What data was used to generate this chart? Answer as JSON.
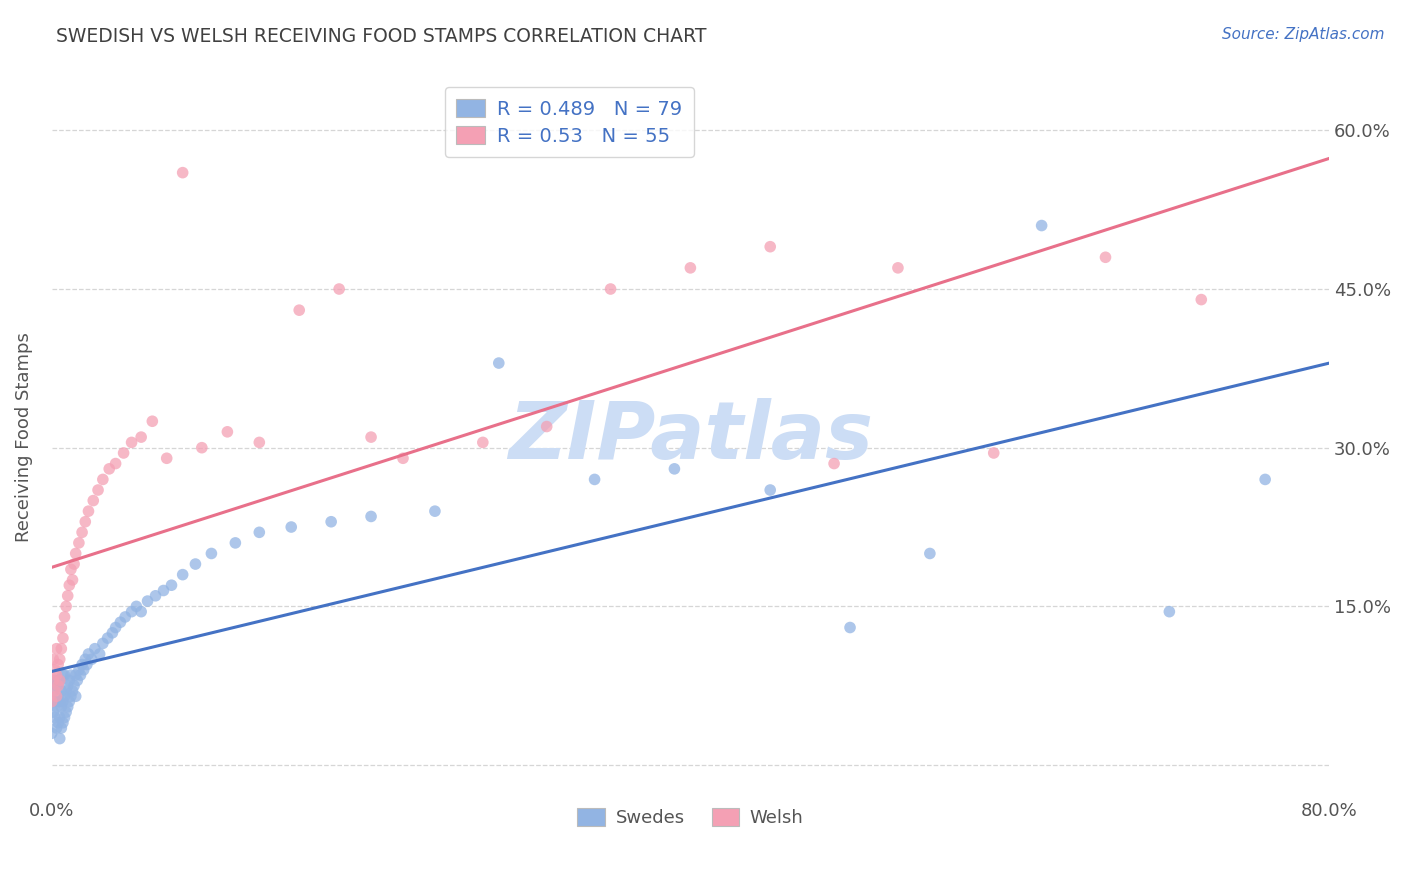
{
  "title": "SWEDISH VS WELSH RECEIVING FOOD STAMPS CORRELATION CHART",
  "source": "Source: ZipAtlas.com",
  "ylabel": "Receiving Food Stamps",
  "xlim": [
    0.0,
    0.8
  ],
  "ylim": [
    -0.03,
    0.65
  ],
  "ytick_positions": [
    0.0,
    0.15,
    0.3,
    0.45,
    0.6
  ],
  "ytick_labels_right": [
    "",
    "15.0%",
    "30.0%",
    "45.0%",
    "60.0%"
  ],
  "swedes_R": 0.489,
  "swedes_N": 79,
  "welsh_R": 0.53,
  "welsh_N": 55,
  "swedes_color": "#92b4e3",
  "welsh_color": "#f4a0b4",
  "swedes_line_color": "#4472c4",
  "welsh_line_color": "#e8708a",
  "title_color": "#404040",
  "label_color": "#4472c4",
  "watermark_color": "#ccddf5",
  "background_color": "#ffffff",
  "grid_color": "#cccccc",
  "swedes_x": [
    0.0,
    0.001,
    0.001,
    0.002,
    0.002,
    0.002,
    0.003,
    0.003,
    0.003,
    0.004,
    0.004,
    0.004,
    0.005,
    0.005,
    0.005,
    0.005,
    0.006,
    0.006,
    0.006,
    0.007,
    0.007,
    0.007,
    0.008,
    0.008,
    0.008,
    0.009,
    0.009,
    0.01,
    0.01,
    0.011,
    0.011,
    0.012,
    0.012,
    0.013,
    0.014,
    0.015,
    0.015,
    0.016,
    0.017,
    0.018,
    0.019,
    0.02,
    0.021,
    0.022,
    0.023,
    0.025,
    0.027,
    0.03,
    0.032,
    0.035,
    0.038,
    0.04,
    0.043,
    0.046,
    0.05,
    0.053,
    0.056,
    0.06,
    0.065,
    0.07,
    0.075,
    0.082,
    0.09,
    0.1,
    0.115,
    0.13,
    0.15,
    0.175,
    0.2,
    0.24,
    0.28,
    0.34,
    0.39,
    0.45,
    0.5,
    0.55,
    0.62,
    0.7,
    0.76
  ],
  "swedes_y": [
    0.03,
    0.05,
    0.07,
    0.045,
    0.06,
    0.08,
    0.035,
    0.055,
    0.075,
    0.04,
    0.06,
    0.08,
    0.025,
    0.045,
    0.06,
    0.08,
    0.035,
    0.055,
    0.07,
    0.04,
    0.06,
    0.085,
    0.045,
    0.065,
    0.085,
    0.05,
    0.07,
    0.055,
    0.075,
    0.06,
    0.08,
    0.065,
    0.085,
    0.07,
    0.075,
    0.065,
    0.085,
    0.08,
    0.09,
    0.085,
    0.095,
    0.09,
    0.1,
    0.095,
    0.105,
    0.1,
    0.11,
    0.105,
    0.115,
    0.12,
    0.125,
    0.13,
    0.135,
    0.14,
    0.145,
    0.15,
    0.145,
    0.155,
    0.16,
    0.165,
    0.17,
    0.18,
    0.19,
    0.2,
    0.21,
    0.22,
    0.225,
    0.23,
    0.235,
    0.24,
    0.38,
    0.27,
    0.28,
    0.26,
    0.13,
    0.2,
    0.51,
    0.145,
    0.27
  ],
  "welsh_x": [
    0.0,
    0.001,
    0.001,
    0.002,
    0.002,
    0.003,
    0.003,
    0.003,
    0.004,
    0.004,
    0.005,
    0.005,
    0.006,
    0.006,
    0.007,
    0.008,
    0.009,
    0.01,
    0.011,
    0.012,
    0.013,
    0.014,
    0.015,
    0.017,
    0.019,
    0.021,
    0.023,
    0.026,
    0.029,
    0.032,
    0.036,
    0.04,
    0.045,
    0.05,
    0.056,
    0.063,
    0.072,
    0.082,
    0.094,
    0.11,
    0.13,
    0.155,
    0.18,
    0.2,
    0.22,
    0.27,
    0.31,
    0.35,
    0.4,
    0.45,
    0.49,
    0.53,
    0.59,
    0.66,
    0.72
  ],
  "welsh_y": [
    0.06,
    0.08,
    0.1,
    0.07,
    0.09,
    0.065,
    0.085,
    0.11,
    0.075,
    0.095,
    0.08,
    0.1,
    0.11,
    0.13,
    0.12,
    0.14,
    0.15,
    0.16,
    0.17,
    0.185,
    0.175,
    0.19,
    0.2,
    0.21,
    0.22,
    0.23,
    0.24,
    0.25,
    0.26,
    0.27,
    0.28,
    0.285,
    0.295,
    0.305,
    0.31,
    0.325,
    0.29,
    0.56,
    0.3,
    0.315,
    0.305,
    0.43,
    0.45,
    0.31,
    0.29,
    0.305,
    0.32,
    0.45,
    0.47,
    0.49,
    0.285,
    0.47,
    0.295,
    0.48,
    0.44
  ]
}
